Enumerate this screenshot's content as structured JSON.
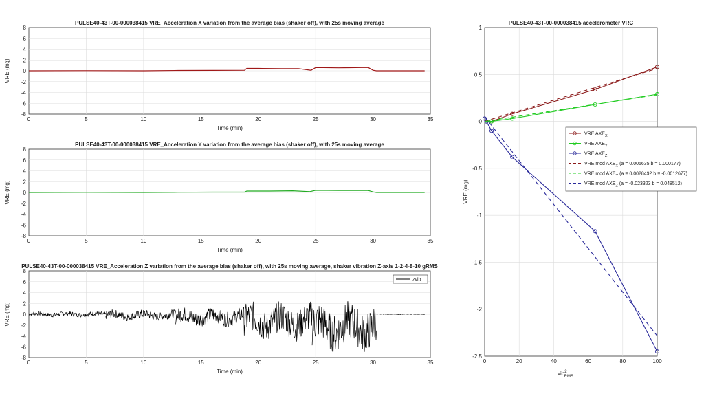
{
  "chart_data": [
    {
      "id": "x",
      "type": "line",
      "title": "PULSE40-43T-00-000038415 VRE_Acceleration X variation from the average bias (shaker off), with 25s moving average",
      "xlabel": "Time (min)",
      "ylabel": "VRE (mg)",
      "xlim": [
        0,
        35
      ],
      "ylim": [
        -8,
        8
      ],
      "xticks": [
        0,
        5,
        10,
        15,
        20,
        25,
        30,
        35
      ],
      "yticks": [
        -8,
        -6,
        -4,
        -2,
        0,
        2,
        4,
        6,
        8
      ],
      "grid": true,
      "color": "#a01818",
      "series": [
        {
          "x": [
            0,
            5,
            10,
            13,
            16,
            18.8,
            19.0,
            20,
            22,
            23.5,
            24.6,
            25.0,
            27,
            29,
            29.6,
            30.0,
            30.3,
            34.5
          ],
          "y": [
            0.0,
            0.02,
            0.0,
            0.06,
            0.08,
            0.1,
            0.45,
            0.45,
            0.4,
            0.4,
            0.1,
            0.6,
            0.55,
            0.6,
            0.6,
            0.1,
            0.0,
            0.0
          ]
        }
      ]
    },
    {
      "id": "y",
      "type": "line",
      "title": "PULSE40-43T-00-000038415 VRE_Acceleration Y variation from the average bias (shaker off), with 25s moving average",
      "xlabel": "Time (min)",
      "ylabel": "VRE (mg)",
      "xlim": [
        0,
        35
      ],
      "ylim": [
        -8,
        8
      ],
      "xticks": [
        0,
        5,
        10,
        15,
        20,
        25,
        30,
        35
      ],
      "yticks": [
        -8,
        -6,
        -4,
        -2,
        0,
        2,
        4,
        6,
        8
      ],
      "grid": true,
      "color": "#22aa22",
      "series": [
        {
          "x": [
            0,
            5,
            10,
            13,
            16,
            18.8,
            19.0,
            21,
            23,
            24.5,
            25.0,
            27,
            29.6,
            30.0,
            30.3,
            34.5
          ],
          "y": [
            0.0,
            0.02,
            0.0,
            0.04,
            0.06,
            0.06,
            0.25,
            0.25,
            0.3,
            0.15,
            0.4,
            0.35,
            0.35,
            0.1,
            0.0,
            0.0
          ]
        }
      ]
    },
    {
      "id": "z",
      "type": "line",
      "title": "PULSE40-43T-00-000038415 VRE_Acceleration Z variation from the average bias (shaker off), with 25s moving average, shaker vibration Z-axis 1-2-4-8-10 gRMS",
      "xlabel": "Time (min)",
      "ylabel": "VRE (mg)",
      "xlim": [
        0,
        35
      ],
      "ylim": [
        -8,
        8
      ],
      "xticks": [
        0,
        5,
        10,
        15,
        20,
        25,
        30,
        35
      ],
      "yticks": [
        -8,
        -6,
        -4,
        -2,
        0,
        2,
        4,
        6,
        8
      ],
      "grid": true,
      "color": "#000000",
      "legend": [
        "zvib"
      ],
      "legend_position": "top-right",
      "segments": [
        {
          "x0": 0,
          "x1": 6.7,
          "amp": 0.4,
          "center": 0.0
        },
        {
          "x0": 6.7,
          "x1": 12.8,
          "amp": 0.8,
          "center": -0.2
        },
        {
          "x0": 12.8,
          "x1": 18.7,
          "amp": 1.4,
          "center": -0.5
        },
        {
          "x0": 18.7,
          "x1": 24.7,
          "amp": 2.8,
          "center": -1.3
        },
        {
          "x0": 24.7,
          "x1": 30.3,
          "amp": 3.6,
          "center": -2.3
        },
        {
          "x0": 30.3,
          "x1": 34.5,
          "amp": 0.05,
          "center": 0.0
        }
      ]
    },
    {
      "id": "vrc",
      "type": "line",
      "title": "PULSE40-43T-00-000038415 accelerometer VRC",
      "xlabel_main": "vib",
      "xlabel_sup": "2",
      "xlabel_sub": "RMS",
      "ylabel": "VRE (mg)",
      "xlim": [
        0,
        100
      ],
      "ylim": [
        -2.5,
        1
      ],
      "xticks": [
        0,
        20,
        40,
        60,
        80,
        100
      ],
      "yticks": [
        -2.5,
        -2,
        -1.5,
        -1,
        -0.5,
        0,
        0.5,
        1
      ],
      "ytick_labels": [
        "-2.5",
        "-2",
        "-1.5",
        "-1",
        "-0.5",
        "0",
        "0.5",
        "1"
      ],
      "grid": true,
      "legend_position": "right",
      "series": [
        {
          "label_main": "VRE AXE",
          "label_sub": "X",
          "x": [
            1,
            4,
            16,
            64,
            100
          ],
          "y": [
            0.0,
            0.0,
            0.08,
            0.34,
            0.58
          ],
          "color": "#8b1a1a",
          "style": "solid",
          "marker": "circle"
        },
        {
          "label_main": "VRE AXE",
          "label_sub": "Y",
          "x": [
            1,
            4,
            16,
            64,
            100
          ],
          "y": [
            0.0,
            0.0,
            0.03,
            0.18,
            0.29
          ],
          "color": "#22cc22",
          "style": "solid",
          "marker": "circle"
        },
        {
          "label_main": "VRE AXE",
          "label_sub": "Z",
          "x": [
            0,
            1,
            4,
            16,
            64,
            100
          ],
          "y": [
            0.03,
            0.0,
            -0.1,
            -0.38,
            -1.17,
            -2.45
          ],
          "color": "#2a2a9a",
          "style": "solid",
          "marker": "circle"
        },
        {
          "label_main": "VRE mod AXE",
          "label_sub": "X",
          "label_rest": " (a = 0.005635 b = 0.000177)",
          "x": [
            0,
            100
          ],
          "y": [
            0.000177,
            0.5637
          ],
          "color": "#8b1a1a",
          "style": "dashed"
        },
        {
          "label_main": "VRE mod AXE",
          "label_sub": "Y",
          "label_rest": " (a = 0.0028492 b = -0.0012677)",
          "x": [
            0,
            100
          ],
          "y": [
            -0.0012677,
            0.2836
          ],
          "color": "#22cc22",
          "style": "dashed"
        },
        {
          "label_main": "VRE mod AXE",
          "label_sub": "Z",
          "label_rest": " (a = -0.023323 b = 0.048512)",
          "x": [
            0,
            100
          ],
          "y": [
            0.048512,
            -2.2838
          ],
          "color": "#2a2a9a",
          "style": "dashed"
        }
      ]
    }
  ]
}
